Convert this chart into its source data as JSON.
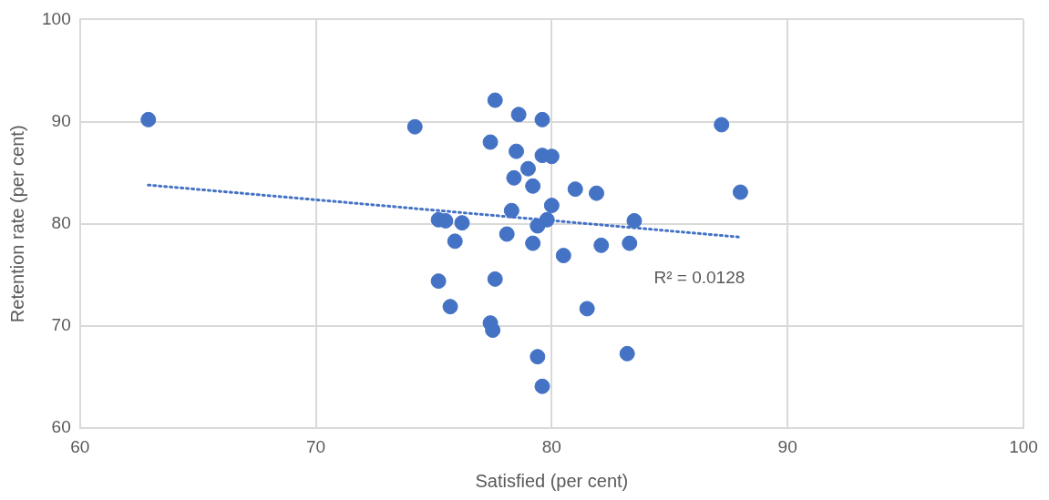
{
  "chart_data": {
    "type": "scatter",
    "xlabel": "Satisfied (per cent)",
    "ylabel": "Retention rate (per cent)",
    "xlim": [
      60,
      100
    ],
    "xticks": [
      60,
      70,
      80,
      90,
      100
    ],
    "ylim": [
      60,
      100
    ],
    "yticks": [
      60,
      70,
      80,
      90,
      100
    ],
    "grid": true,
    "legend": false,
    "marker": "circle",
    "series": [
      {
        "color": "#4472c4",
        "x": [
          62.9,
          74.2,
          77.6,
          78.6,
          79.6,
          77.4,
          78.5,
          79.6,
          80.0,
          79.0,
          78.4,
          79.2,
          81.0,
          81.9,
          80.0,
          78.3,
          75.2,
          75.5,
          76.2,
          79.8,
          79.4,
          83.5,
          78.1,
          79.2,
          75.9,
          82.1,
          83.3,
          80.5,
          77.6,
          75.2,
          75.7,
          81.5,
          77.4,
          77.5,
          79.4,
          83.2,
          79.6,
          87.2,
          88.0
        ],
        "values": [
          90.2,
          89.5,
          92.1,
          90.7,
          90.2,
          88.0,
          87.1,
          86.7,
          86.6,
          85.4,
          84.5,
          83.7,
          83.4,
          83.0,
          81.8,
          81.3,
          80.4,
          80.3,
          80.1,
          80.4,
          79.8,
          80.3,
          79.0,
          78.1,
          78.3,
          77.9,
          78.1,
          76.9,
          74.6,
          74.4,
          71.9,
          71.7,
          70.3,
          69.6,
          67.0,
          67.3,
          64.1,
          89.7,
          83.1
        ]
      },
      {
        "type": "line",
        "color": "#4472c4",
        "line_style": "dotted",
        "marker": "none",
        "x": [
          62.9,
          88.0
        ],
        "values": [
          83.8,
          78.7
        ]
      }
    ],
    "annotations": [
      "R² = 0.0128"
    ]
  }
}
